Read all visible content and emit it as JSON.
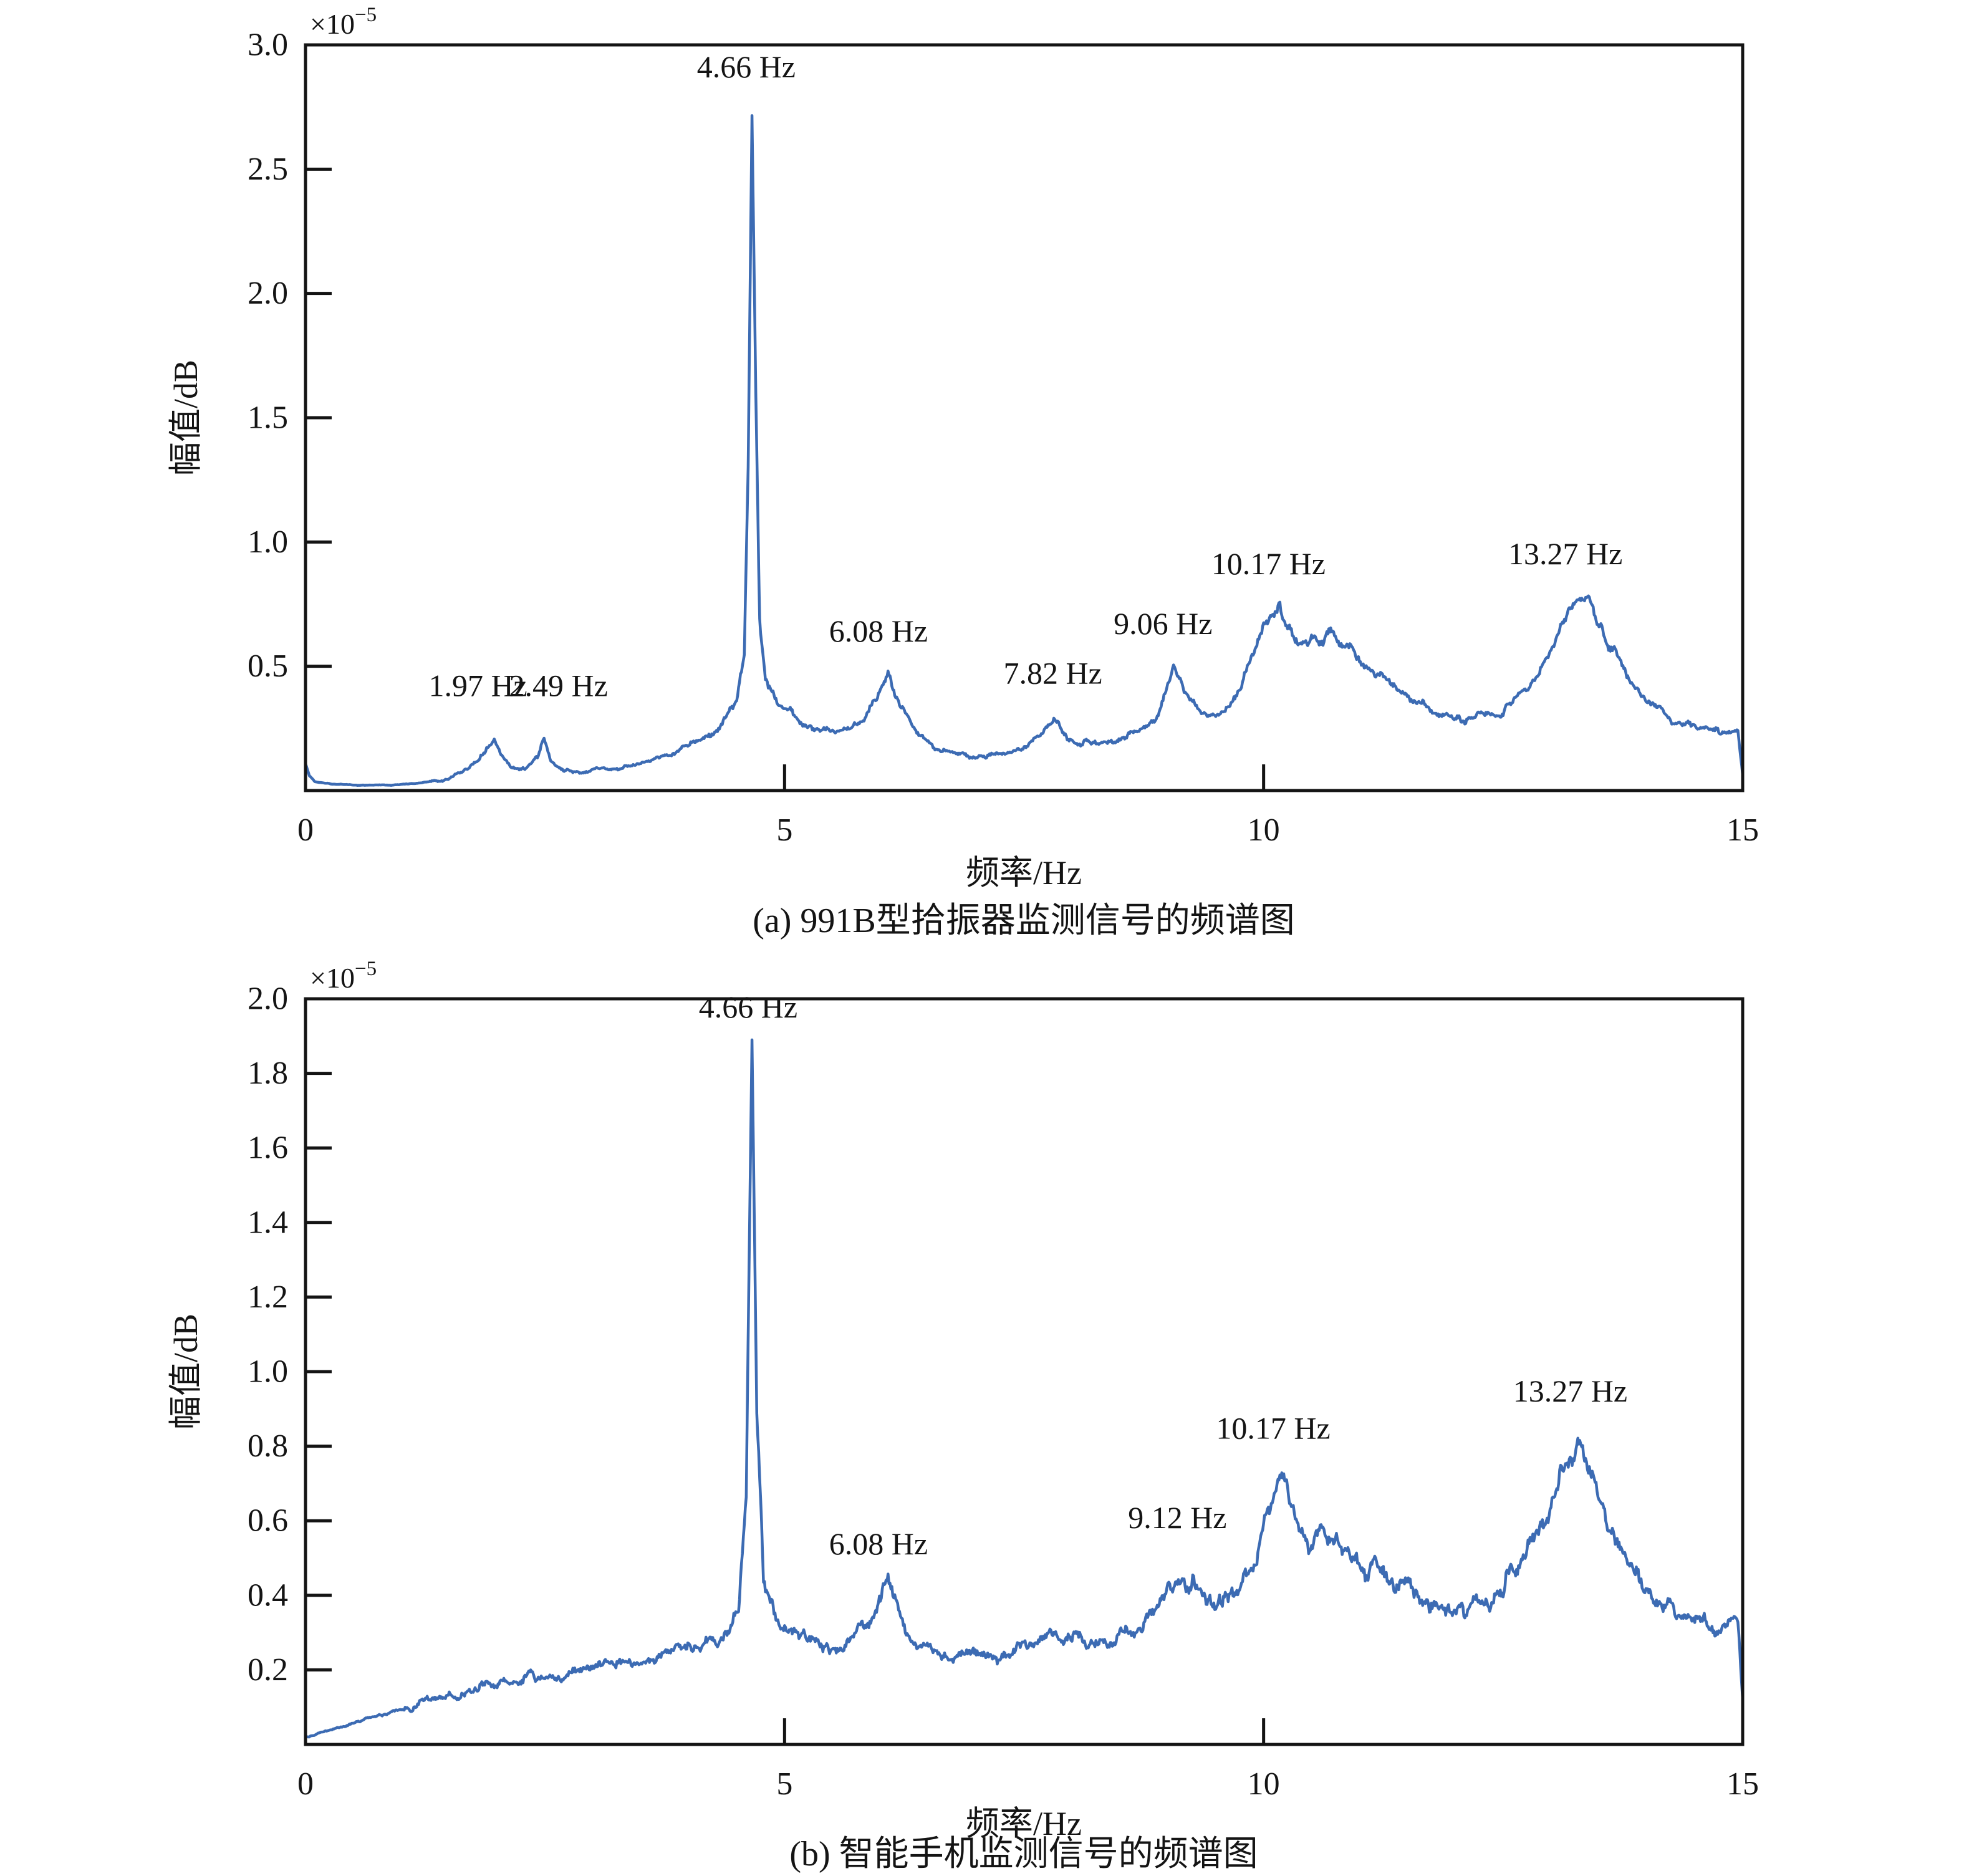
{
  "figure": {
    "background": "#ffffff",
    "axis_color": "#141414",
    "text_color": "#141414",
    "curve_color": "#3c6bb3"
  },
  "chart_data": [
    {
      "type": "line",
      "panel": "a",
      "caption": "(a) 991B型拾振器监测信号的频谱图",
      "xlabel": "频率/Hz",
      "ylabel": "幅值/dB",
      "scale_label": {
        "base": "×10",
        "exp": "−5"
      },
      "xlim": [
        0,
        15
      ],
      "ylim": [
        0,
        3.0
      ],
      "xticks": [
        0,
        5,
        10,
        15
      ],
      "xtick_labels": [
        "0",
        "5",
        "10",
        "15"
      ],
      "yticks": [
        0.5,
        1.0,
        1.5,
        2.0,
        2.5,
        3.0
      ],
      "ytick_labels": [
        "0.5",
        "1.0",
        "1.5",
        "2.0",
        "2.5",
        "3.0"
      ],
      "grid": false,
      "legend": null,
      "peaks": [
        {
          "label": "1.97 Hz",
          "x": 1.8,
          "y": 0.38
        },
        {
          "label": "2.49 Hz",
          "x": 2.64,
          "y": 0.38
        },
        {
          "label": "4.66 Hz",
          "x": 4.6,
          "y": 2.87
        },
        {
          "label": "6.08 Hz",
          "x": 5.98,
          "y": 0.6
        },
        {
          "label": "7.82 Hz",
          "x": 7.8,
          "y": 0.43
        },
        {
          "label": "9.06 Hz",
          "x": 8.95,
          "y": 0.63
        },
        {
          "label": "10.17 Hz",
          "x": 10.05,
          "y": 0.87
        },
        {
          "label": "13.27 Hz",
          "x": 13.15,
          "y": 0.91
        }
      ],
      "series": [
        {
          "name": "amplitude-spectrum-991B",
          "color": "#3c6bb3",
          "seed": 11,
          "noise_base": 0.006,
          "noise_gain": 0.07,
          "noise_cap": 0.045,
          "quiet_below_hz": 1.3,
          "quiet_factor": 0.3,
          "anchors": [
            [
              0.0,
              0.11
            ],
            [
              0.04,
              0.06
            ],
            [
              0.1,
              0.035
            ],
            [
              0.3,
              0.025
            ],
            [
              0.6,
              0.022
            ],
            [
              0.9,
              0.022
            ],
            [
              1.2,
              0.03
            ],
            [
              1.45,
              0.045
            ],
            [
              1.65,
              0.08
            ],
            [
              1.82,
              0.13
            ],
            [
              1.97,
              0.205
            ],
            [
              2.05,
              0.14
            ],
            [
              2.15,
              0.095
            ],
            [
              2.3,
              0.085
            ],
            [
              2.42,
              0.13
            ],
            [
              2.49,
              0.205
            ],
            [
              2.56,
              0.12
            ],
            [
              2.7,
              0.08
            ],
            [
              2.85,
              0.075
            ],
            [
              3.1,
              0.085
            ],
            [
              3.4,
              0.1
            ],
            [
              3.7,
              0.13
            ],
            [
              3.95,
              0.17
            ],
            [
              4.15,
              0.21
            ],
            [
              4.35,
              0.27
            ],
            [
              4.5,
              0.36
            ],
            [
              4.58,
              0.55
            ],
            [
              4.62,
              1.3
            ],
            [
              4.66,
              2.72
            ],
            [
              4.7,
              1.6
            ],
            [
              4.74,
              0.7
            ],
            [
              4.8,
              0.44
            ],
            [
              4.9,
              0.37
            ],
            [
              5.05,
              0.32
            ],
            [
              5.2,
              0.27
            ],
            [
              5.35,
              0.24
            ],
            [
              5.5,
              0.235
            ],
            [
              5.65,
              0.25
            ],
            [
              5.8,
              0.29
            ],
            [
              5.95,
              0.36
            ],
            [
              6.08,
              0.465
            ],
            [
              6.2,
              0.35
            ],
            [
              6.35,
              0.25
            ],
            [
              6.55,
              0.18
            ],
            [
              6.8,
              0.15
            ],
            [
              7.05,
              0.14
            ],
            [
              7.3,
              0.145
            ],
            [
              7.5,
              0.17
            ],
            [
              7.65,
              0.21
            ],
            [
              7.82,
              0.295
            ],
            [
              7.95,
              0.21
            ],
            [
              8.1,
              0.19
            ],
            [
              8.3,
              0.195
            ],
            [
              8.5,
              0.21
            ],
            [
              8.7,
              0.24
            ],
            [
              8.88,
              0.3
            ],
            [
              9.06,
              0.49
            ],
            [
              9.2,
              0.37
            ],
            [
              9.35,
              0.31
            ],
            [
              9.5,
              0.3
            ],
            [
              9.65,
              0.35
            ],
            [
              9.8,
              0.46
            ],
            [
              9.95,
              0.6
            ],
            [
              10.17,
              0.74
            ],
            [
              10.3,
              0.64
            ],
            [
              10.45,
              0.58
            ],
            [
              10.6,
              0.6
            ],
            [
              10.75,
              0.62
            ],
            [
              10.9,
              0.56
            ],
            [
              11.1,
              0.5
            ],
            [
              11.35,
              0.42
            ],
            [
              11.6,
              0.36
            ],
            [
              11.85,
              0.31
            ],
            [
              12.1,
              0.29
            ],
            [
              12.35,
              0.3
            ],
            [
              12.6,
              0.35
            ],
            [
              12.85,
              0.45
            ],
            [
              13.05,
              0.62
            ],
            [
              13.27,
              0.79
            ],
            [
              13.4,
              0.76
            ],
            [
              13.55,
              0.65
            ],
            [
              13.75,
              0.48
            ],
            [
              13.95,
              0.37
            ],
            [
              14.2,
              0.3
            ],
            [
              14.5,
              0.26
            ],
            [
              14.75,
              0.24
            ],
            [
              14.95,
              0.245
            ],
            [
              15.0,
              0.06
            ]
          ]
        }
      ]
    },
    {
      "type": "line",
      "panel": "b",
      "caption": "(b) 智能手机监测信号的频谱图",
      "xlabel": "频率/Hz",
      "ylabel": "幅值/dB",
      "scale_label": {
        "base": "×10",
        "exp": "−5"
      },
      "xlim": [
        0,
        15
      ],
      "ylim": [
        0,
        2.0
      ],
      "xticks": [
        0,
        5,
        10,
        15
      ],
      "xtick_labels": [
        "0",
        "5",
        "10",
        "15"
      ],
      "yticks": [
        0.2,
        0.4,
        0.6,
        0.8,
        1.0,
        1.2,
        1.4,
        1.6,
        1.8,
        2.0
      ],
      "ytick_labels": [
        "0.2",
        "0.4",
        "0.6",
        "0.8",
        "1.0",
        "1.2",
        "1.4",
        "1.6",
        "1.8",
        "2.0"
      ],
      "grid": false,
      "legend": null,
      "peaks": [
        {
          "label": "4.66 Hz",
          "x": 4.62,
          "y": 1.95
        },
        {
          "label": "6.08 Hz",
          "x": 5.98,
          "y": 0.51
        },
        {
          "label": "9.12 Hz",
          "x": 9.1,
          "y": 0.58
        },
        {
          "label": "10.17 Hz",
          "x": 10.1,
          "y": 0.82
        },
        {
          "label": "13.27 Hz",
          "x": 13.2,
          "y": 0.92
        }
      ],
      "series": [
        {
          "name": "amplitude-spectrum-smartphone",
          "color": "#3c6bb3",
          "seed": 23,
          "noise_base": 0.008,
          "noise_gain": 0.09,
          "noise_cap": 0.05,
          "quiet_below_hz": 1.0,
          "quiet_factor": 0.35,
          "anchors": [
            [
              0.0,
              0.02
            ],
            [
              0.4,
              0.05
            ],
            [
              0.8,
              0.08
            ],
            [
              1.2,
              0.11
            ],
            [
              1.6,
              0.135
            ],
            [
              2.0,
              0.16
            ],
            [
              2.3,
              0.185
            ],
            [
              2.6,
              0.175
            ],
            [
              3.0,
              0.2
            ],
            [
              3.4,
              0.22
            ],
            [
              3.8,
              0.24
            ],
            [
              4.1,
              0.26
            ],
            [
              4.35,
              0.29
            ],
            [
              4.52,
              0.34
            ],
            [
              4.6,
              0.7
            ],
            [
              4.66,
              1.89
            ],
            [
              4.71,
              0.9
            ],
            [
              4.78,
              0.42
            ],
            [
              4.9,
              0.35
            ],
            [
              5.05,
              0.31
            ],
            [
              5.25,
              0.28
            ],
            [
              5.5,
              0.265
            ],
            [
              5.7,
              0.29
            ],
            [
              5.9,
              0.34
            ],
            [
              6.08,
              0.435
            ],
            [
              6.22,
              0.33
            ],
            [
              6.4,
              0.27
            ],
            [
              6.65,
              0.24
            ],
            [
              6.9,
              0.235
            ],
            [
              7.15,
              0.24
            ],
            [
              7.4,
              0.25
            ],
            [
              7.65,
              0.29
            ],
            [
              7.8,
              0.31
            ],
            [
              7.95,
              0.28
            ],
            [
              8.2,
              0.27
            ],
            [
              8.45,
              0.28
            ],
            [
              8.7,
              0.3
            ],
            [
              8.9,
              0.35
            ],
            [
              9.12,
              0.47
            ],
            [
              9.3,
              0.41
            ],
            [
              9.5,
              0.37
            ],
            [
              9.7,
              0.4
            ],
            [
              9.9,
              0.5
            ],
            [
              10.05,
              0.62
            ],
            [
              10.17,
              0.73
            ],
            [
              10.32,
              0.6
            ],
            [
              10.5,
              0.55
            ],
            [
              10.65,
              0.57
            ],
            [
              10.8,
              0.55
            ],
            [
              11.0,
              0.5
            ],
            [
              11.25,
              0.46
            ],
            [
              11.5,
              0.42
            ],
            [
              11.8,
              0.38
            ],
            [
              12.1,
              0.36
            ],
            [
              12.4,
              0.4
            ],
            [
              12.7,
              0.5
            ],
            [
              12.95,
              0.62
            ],
            [
              13.27,
              0.8
            ],
            [
              13.42,
              0.73
            ],
            [
              13.6,
              0.6
            ],
            [
              13.85,
              0.47
            ],
            [
              14.1,
              0.4
            ],
            [
              14.4,
              0.34
            ],
            [
              14.7,
              0.31
            ],
            [
              14.95,
              0.32
            ],
            [
              15.0,
              0.12
            ]
          ]
        }
      ]
    }
  ]
}
